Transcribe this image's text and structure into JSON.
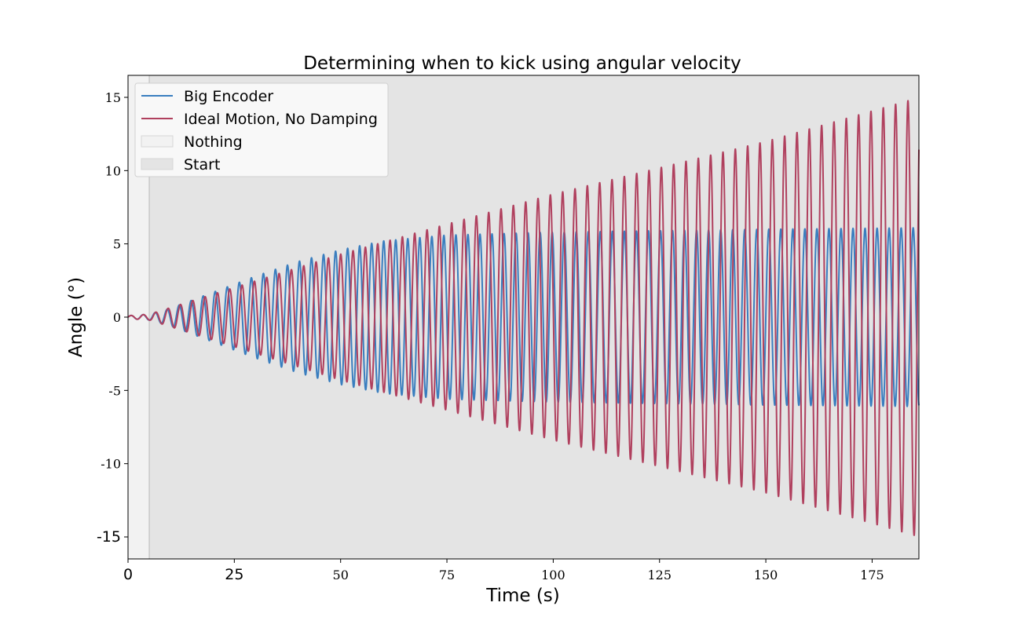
{
  "chart_data": {
    "type": "line",
    "title": "Determining when to kick using angular velocity",
    "xlabel": "Time (s)",
    "ylabel": "Angle (°)",
    "xlim": [
      0,
      186
    ],
    "ylim": [
      -16.5,
      16.5
    ],
    "x_ticks": [
      {
        "value": 0,
        "label": "0"
      },
      {
        "value": 25,
        "label": "25"
      },
      {
        "value": 50,
        "label": "50"
      },
      {
        "value": 75,
        "label": "75"
      },
      {
        "value": 100,
        "label": "100"
      },
      {
        "value": 125,
        "label": "125"
      },
      {
        "value": 150,
        "label": "150"
      },
      {
        "value": 175,
        "label": "175"
      }
    ],
    "y_ticks": [
      {
        "value": 15,
        "label": "15"
      },
      {
        "value": 10,
        "label": "10"
      },
      {
        "value": 5,
        "label": "5"
      },
      {
        "value": 0,
        "label": "0"
      },
      {
        "value": -5,
        "label": "-5"
      },
      {
        "value": -10,
        "label": "-10"
      },
      {
        "value": -15,
        "label": "-15"
      }
    ],
    "regions": [
      {
        "name": "Nothing",
        "x_start": 0,
        "x_end": 5,
        "color": "#f2f2f2"
      },
      {
        "name": "Start",
        "x_start": 5,
        "x_end": 186,
        "color": "#e4e4e4"
      }
    ],
    "series": [
      {
        "name": "Big Encoder",
        "color": "#3a7ebf",
        "period_s": 2.83,
        "start_time_s": 5,
        "amplitude_envelope": [
          [
            0,
            0.1
          ],
          [
            5,
            0.2
          ],
          [
            10,
            0.6
          ],
          [
            20,
            1.7
          ],
          [
            30,
            2.8
          ],
          [
            40,
            3.8
          ],
          [
            50,
            4.6
          ],
          [
            60,
            5.2
          ],
          [
            75,
            5.6
          ],
          [
            100,
            5.8
          ],
          [
            150,
            6.0
          ],
          [
            186,
            6.1
          ]
        ]
      },
      {
        "name": "Ideal Motion, No Damping",
        "color": "#b0405e",
        "period_s": 2.9,
        "start_time_s": 0,
        "amplitude_envelope": [
          [
            0,
            0.1
          ],
          [
            5,
            0.2
          ],
          [
            50,
            4.3
          ],
          [
            100,
            8.4
          ],
          [
            150,
            12.0
          ],
          [
            186,
            15.0
          ]
        ]
      }
    ],
    "legend": {
      "position": "top-left",
      "entries": [
        {
          "label": "Big Encoder",
          "kind": "line",
          "color": "#3a7ebf"
        },
        {
          "label": "Ideal Motion, No Damping",
          "kind": "line",
          "color": "#b0405e"
        },
        {
          "label": "Nothing",
          "kind": "patch",
          "color": "#f2f2f2"
        },
        {
          "label": "Start",
          "kind": "patch",
          "color": "#e4e4e4"
        }
      ]
    },
    "grid": false
  }
}
